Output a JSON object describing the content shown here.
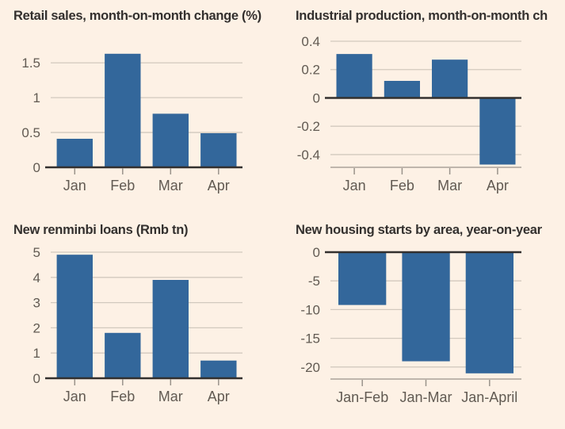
{
  "page": {
    "background_color": "#FDF1E5"
  },
  "style": {
    "bar_color": "#33679B",
    "grid_color": "#D2C9BE",
    "axis_color": "#33302E",
    "tick_color": "#9A938B",
    "label_color": "#615A52",
    "title_color": "#33302E"
  },
  "chart_data": [
    {
      "type": "bar",
      "title": "Retail sales, month-on-month change (%)",
      "categories": [
        "Jan",
        "Feb",
        "Mar",
        "Apr"
      ],
      "values": [
        0.41,
        1.63,
        0.77,
        0.49
      ],
      "yticks": [
        {
          "v": 0,
          "label": "0"
        },
        {
          "v": 0.5,
          "label": "0.5"
        },
        {
          "v": 1,
          "label": "1"
        },
        {
          "v": 1.5,
          "label": "1.5"
        }
      ],
      "ylim": [
        0,
        1.81
      ],
      "grid": true,
      "legend": "none"
    },
    {
      "type": "bar",
      "title": "Industrial production, month-on-month ch",
      "categories": [
        "Jan",
        "Feb",
        "Mar",
        "Apr"
      ],
      "values": [
        0.31,
        0.12,
        0.27,
        -0.47
      ],
      "yticks": [
        {
          "v": 0.4,
          "label": "0.4"
        },
        {
          "v": 0.2,
          "label": "0.2"
        },
        {
          "v": 0,
          "label": "0"
        },
        {
          "v": -0.2,
          "label": "-0.2"
        },
        {
          "v": -0.4,
          "label": "-0.4"
        }
      ],
      "ylim": [
        -0.49,
        0.4
      ],
      "grid": true,
      "legend": "none"
    },
    {
      "type": "bar",
      "title": "New renminbi loans (Rmb tn)",
      "categories": [
        "Jan",
        "Feb",
        "Mar",
        "Apr"
      ],
      "values": [
        4.9,
        1.8,
        3.9,
        0.7
      ],
      "yticks": [
        {
          "v": 0,
          "label": "0"
        },
        {
          "v": 1,
          "label": "1"
        },
        {
          "v": 2,
          "label": "2"
        },
        {
          "v": 3,
          "label": "3"
        },
        {
          "v": 4,
          "label": "4"
        },
        {
          "v": 5,
          "label": "5"
        }
      ],
      "ylim": [
        0,
        5.0
      ],
      "grid": true,
      "legend": "none"
    },
    {
      "type": "bar",
      "title": "New housing starts by area, year-on-year",
      "categories": [
        "Jan-Feb",
        "Jan-Mar",
        "Jan-April"
      ],
      "values": [
        -9.2,
        -19.0,
        -21.1
      ],
      "yticks": [
        {
          "v": 0,
          "label": "0"
        },
        {
          "v": -5,
          "label": "-5"
        },
        {
          "v": -10,
          "label": "-10"
        },
        {
          "v": -15,
          "label": "-15"
        },
        {
          "v": -20,
          "label": "-20"
        }
      ],
      "ylim": [
        -22.1,
        0
      ],
      "grid": true,
      "legend": "none"
    }
  ]
}
